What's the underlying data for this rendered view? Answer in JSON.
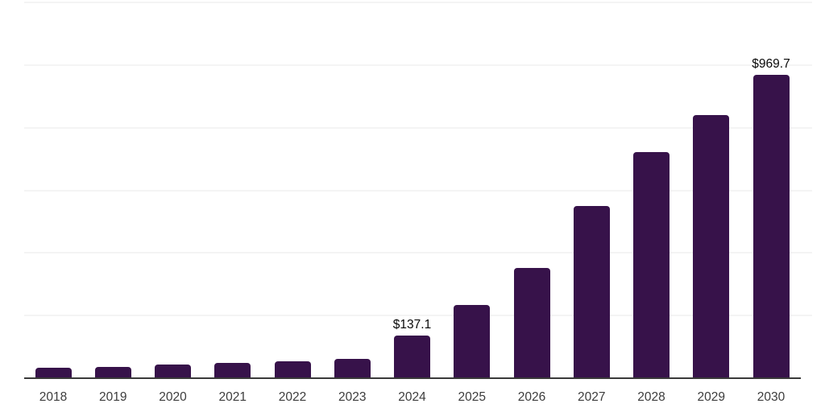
{
  "chart": {
    "background_color": "#ffffff",
    "bar_color": "#37124a",
    "gridline_color": "#f4f4f4",
    "axis_line_color": "#3a3a3a",
    "tick_label_color": "#3c3c3c",
    "data_label_color": "#0a0a0a"
  },
  "chart_data": {
    "type": "bar",
    "title": "",
    "xlabel": "",
    "ylabel": "",
    "categories": [
      "2018",
      "2019",
      "2020",
      "2021",
      "2022",
      "2023",
      "2024",
      "2025",
      "2026",
      "2027",
      "2028",
      "2029",
      "2030"
    ],
    "values": [
      33,
      35,
      44,
      48,
      53,
      61,
      137.1,
      233,
      352,
      550,
      723,
      839,
      969.7
    ],
    "data_labels": [
      {
        "category": "2024",
        "text": "$137.1"
      },
      {
        "category": "2030",
        "text": "$969.7"
      }
    ],
    "ylim": [
      0,
      1200
    ],
    "grid_step": 200,
    "grid": "horizontal-only",
    "y_tick_labels_visible": false,
    "legend": "none",
    "value_unit_prefix": "$"
  }
}
